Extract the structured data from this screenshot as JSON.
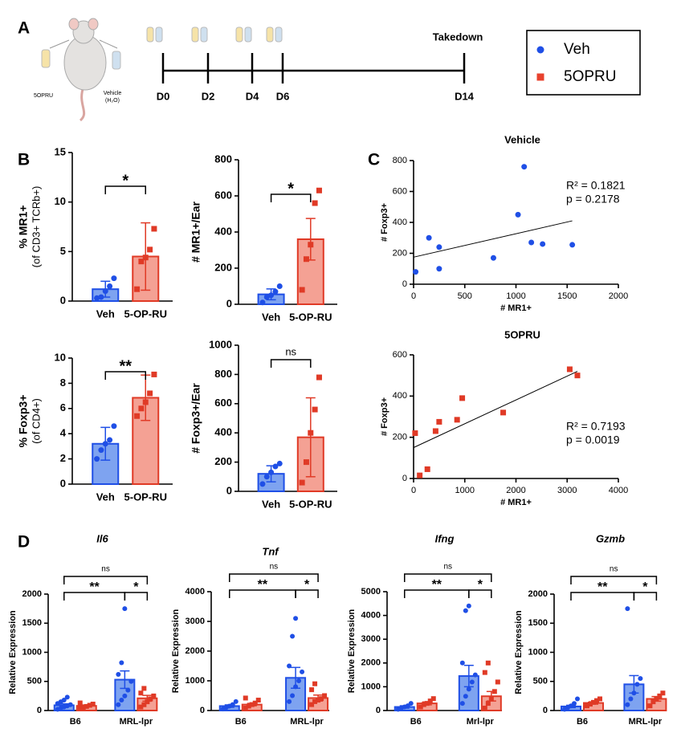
{
  "panels": [
    "A",
    "B",
    "C",
    "D"
  ],
  "timeline": {
    "days": [
      "D0",
      "D2",
      "D4",
      "D6",
      "D14"
    ],
    "endpoint": "Takedown",
    "left_label": "5OPRU",
    "right_label": [
      "Vehicle",
      "(H₂O)"
    ]
  },
  "legend": [
    {
      "name": "Veh",
      "color": "#1f4fe6",
      "marker": "circle"
    },
    {
      "name": "5OPRU",
      "color": "#e8422e",
      "marker": "square"
    }
  ],
  "chart_data": [
    {
      "type": "bar-dot",
      "ylabel": [
        "% MR1+",
        "(of CD3+ TCRb+)"
      ],
      "categories": [
        "Veh",
        "5-OP-RU"
      ],
      "values": [
        1.2,
        4.5
      ],
      "errors": [
        0.8,
        3.4
      ],
      "points": [
        [
          0.3,
          0.4,
          1.0,
          1.5,
          2.3
        ],
        [
          1.2,
          4.0,
          4.4,
          5.2,
          7.3
        ]
      ],
      "colors": [
        "#1f4fe6",
        "#e03a26"
      ],
      "fills": [
        "#7ea3f0",
        "#f4a194"
      ],
      "markers": [
        "circle",
        "square"
      ],
      "ylim": [
        0,
        15
      ],
      "yticks": [
        0,
        5,
        10,
        15
      ],
      "annotations": [
        {
          "text": "*",
          "from": 0,
          "to": 1
        }
      ]
    },
    {
      "type": "bar-dot",
      "ylabel": [
        "# MR1+/Ear"
      ],
      "categories": [
        "Veh",
        "5-OP-RU"
      ],
      "values": [
        55,
        360
      ],
      "errors": [
        30,
        115
      ],
      "points": [
        [
          10,
          40,
          50,
          70,
          100
        ],
        [
          80,
          250,
          330,
          560,
          630
        ]
      ],
      "colors": [
        "#1f4fe6",
        "#e03a26"
      ],
      "fills": [
        "#7ea3f0",
        "#f4a194"
      ],
      "markers": [
        "circle",
        "square"
      ],
      "ylim": [
        0,
        800
      ],
      "yticks": [
        0,
        200,
        400,
        600,
        800
      ],
      "annotations": [
        {
          "text": "*",
          "from": 0,
          "to": 1
        }
      ]
    },
    {
      "type": "bar-dot",
      "ylabel": [
        "% Foxp3+",
        "(of CD4+)"
      ],
      "categories": [
        "Veh",
        "5-OP-RU"
      ],
      "values": [
        3.2,
        6.85
      ],
      "errors": [
        1.3,
        1.8
      ],
      "points": [
        [
          2.0,
          2.7,
          3.2,
          3.5,
          4.6
        ],
        [
          5.4,
          6.0,
          6.5,
          7.2,
          8.7
        ]
      ],
      "colors": [
        "#1f4fe6",
        "#e03a26"
      ],
      "fills": [
        "#7ea3f0",
        "#f4a194"
      ],
      "markers": [
        "circle",
        "square"
      ],
      "ylim": [
        0,
        10
      ],
      "yticks": [
        0,
        2,
        4,
        6,
        8,
        10
      ],
      "annotations": [
        {
          "text": "**",
          "from": 0,
          "to": 1
        }
      ]
    },
    {
      "type": "bar-dot",
      "ylabel": [
        "# Foxp3+/Ear"
      ],
      "categories": [
        "Veh",
        "5-OP-RU"
      ],
      "values": [
        120,
        370
      ],
      "errors": [
        55,
        270
      ],
      "points": [
        [
          50,
          100,
          130,
          170,
          190
        ],
        [
          60,
          200,
          400,
          560,
          780
        ]
      ],
      "colors": [
        "#1f4fe6",
        "#e03a26"
      ],
      "fills": [
        "#7ea3f0",
        "#f4a194"
      ],
      "markers": [
        "circle",
        "square"
      ],
      "ylim": [
        0,
        1000
      ],
      "yticks": [
        0,
        200,
        400,
        600,
        800,
        1000
      ],
      "annotations": [
        {
          "text": "ns",
          "from": 0,
          "to": 1
        }
      ]
    },
    {
      "type": "scatter",
      "title": "Vehicle",
      "xlabel": "# MR1+",
      "ylabel": "# Foxp3+",
      "color": "#1f4fe6",
      "marker": "circle",
      "x": [
        20,
        150,
        250,
        250,
        780,
        1020,
        1080,
        1150,
        1260,
        1550
      ],
      "y": [
        80,
        300,
        240,
        100,
        170,
        450,
        760,
        270,
        260,
        255
      ],
      "fit": {
        "x": [
          0,
          1550
        ],
        "y": [
          175,
          410
        ]
      },
      "xlim": [
        0,
        2000
      ],
      "xticks": [
        0,
        500,
        1000,
        1500,
        2000
      ],
      "ylim": [
        0,
        800
      ],
      "yticks": [
        0,
        200,
        400,
        600,
        800
      ],
      "annotations": [
        "R² = 0.1821",
        "p = 0.2178"
      ]
    },
    {
      "type": "scatter",
      "title": "5OPRU",
      "xlabel": "# MR1+",
      "ylabel": "# Foxp3+",
      "color": "#e03a26",
      "marker": "square",
      "x": [
        30,
        120,
        270,
        430,
        500,
        850,
        950,
        1750,
        3050,
        3200
      ],
      "y": [
        220,
        15,
        45,
        230,
        275,
        285,
        390,
        320,
        530,
        500
      ],
      "fit": {
        "x": [
          0,
          3200
        ],
        "y": [
          150,
          520
        ]
      },
      "xlim": [
        0,
        4000
      ],
      "xticks": [
        0,
        1000,
        2000,
        3000,
        4000
      ],
      "ylim": [
        0,
        600
      ],
      "yticks": [
        0,
        200,
        400,
        600
      ],
      "annotations": [
        "R² = 0.7193",
        "p = 0.0019"
      ]
    },
    {
      "type": "bar-dot",
      "title": "Il6",
      "ylabel": "Relative Expression",
      "categories": [
        "B6",
        "MRL-lpr"
      ],
      "series": [
        {
          "color": "#1f4fe6",
          "fill": "#7ea3f0",
          "marker": "circle",
          "values": [
            90,
            530
          ],
          "errors": [
            25,
            150
          ],
          "points": [
            [
              20,
              40,
              60,
              80,
              100,
              120,
              150,
              180,
              230
            ],
            [
              100,
              180,
              250,
              350,
              500,
              620,
              820,
              1750
            ]
          ]
        },
        {
          "color": "#e03a26",
          "fill": "#f4a194",
          "marker": "square",
          "values": [
            80,
            210
          ],
          "errors": [
            15,
            50
          ],
          "points": [
            [
              30,
              50,
              70,
              90,
              110,
              130
            ],
            [
              60,
              100,
              150,
              200,
              250,
              300,
              380
            ]
          ]
        }
      ],
      "ylim": [
        0,
        2000
      ],
      "yticks": [
        0,
        500,
        1000,
        1500,
        2000
      ],
      "annotations": [
        {
          "text": "ns",
          "from": 0,
          "to": 3
        },
        {
          "text": "**",
          "from": 0,
          "to": 2
        },
        {
          "text": "*",
          "from": 2,
          "to": 3
        }
      ]
    },
    {
      "type": "bar-dot",
      "title": "Tnf",
      "ylabel": "Relative Expression",
      "categories": [
        "B6",
        "MRL-lpr"
      ],
      "series": [
        {
          "color": "#1f4fe6",
          "fill": "#7ea3f0",
          "marker": "circle",
          "values": [
            150,
            1100
          ],
          "errors": [
            40,
            350
          ],
          "points": [
            [
              50,
              100,
              150,
              200,
              300
            ],
            [
              300,
              500,
              800,
              1000,
              1300,
              1500,
              2500,
              3100
            ]
          ]
        },
        {
          "color": "#e03a26",
          "fill": "#f4a194",
          "marker": "square",
          "values": [
            200,
            420
          ],
          "errors": [
            40,
            100
          ],
          "points": [
            [
              80,
              150,
              200,
              250,
              350,
              420
            ],
            [
              200,
              300,
              350,
              400,
              500,
              700,
              900
            ]
          ]
        }
      ],
      "ylim": [
        0,
        4000
      ],
      "yticks": [
        0,
        1000,
        2000,
        3000,
        4000
      ],
      "annotations": [
        {
          "text": "ns",
          "from": 0,
          "to": 3
        },
        {
          "text": "**",
          "from": 0,
          "to": 2
        },
        {
          "text": "*",
          "from": 2,
          "to": 3
        }
      ]
    },
    {
      "type": "bar-dot",
      "title": "Ifng",
      "ylabel": "Relative Expression",
      "categories": [
        "B6",
        "Mrl-lpr"
      ],
      "series": [
        {
          "color": "#1f4fe6",
          "fill": "#7ea3f0",
          "marker": "circle",
          "values": [
            150,
            1450
          ],
          "errors": [
            50,
            450
          ],
          "points": [
            [
              50,
              100,
              150,
              200,
              300
            ],
            [
              300,
              600,
              900,
              1200,
              1500,
              2000,
              4200,
              4400
            ]
          ]
        },
        {
          "color": "#e03a26",
          "fill": "#f4a194",
          "marker": "square",
          "values": [
            300,
            600
          ],
          "errors": [
            60,
            200
          ],
          "points": [
            [
              150,
              250,
              300,
              400,
              500
            ],
            [
              100,
              300,
              500,
              800,
              1200,
              1600,
              2000
            ]
          ]
        }
      ],
      "ylim": [
        0,
        5000
      ],
      "yticks": [
        0,
        1000,
        2000,
        3000,
        4000,
        5000
      ],
      "annotations": [
        {
          "text": "ns",
          "from": 0,
          "to": 3
        },
        {
          "text": "**",
          "from": 0,
          "to": 2
        },
        {
          "text": "*",
          "from": 2,
          "to": 3
        }
      ]
    },
    {
      "type": "bar-dot",
      "title": "Gzmb",
      "ylabel": "Relative Expression",
      "categories": [
        "B6",
        "MRL-lpr"
      ],
      "series": [
        {
          "color": "#1f4fe6",
          "fill": "#7ea3f0",
          "marker": "circle",
          "values": [
            70,
            450
          ],
          "errors": [
            20,
            150
          ],
          "points": [
            [
              20,
              50,
              80,
              120,
              200
            ],
            [
              100,
              200,
              300,
              450,
              550,
              1750
            ]
          ]
        },
        {
          "color": "#e03a26",
          "fill": "#f4a194",
          "marker": "square",
          "values": [
            130,
            200
          ],
          "errors": [
            20,
            40
          ],
          "points": [
            [
              80,
              110,
              140,
              170,
              200
            ],
            [
              80,
              150,
              200,
              250,
              300
            ]
          ]
        }
      ],
      "ylim": [
        0,
        2000
      ],
      "yticks": [
        0,
        500,
        1000,
        1500,
        2000
      ],
      "annotations": [
        {
          "text": "ns",
          "from": 0,
          "to": 3
        },
        {
          "text": "**",
          "from": 0,
          "to": 2
        },
        {
          "text": "*",
          "from": 2,
          "to": 3
        }
      ]
    }
  ]
}
